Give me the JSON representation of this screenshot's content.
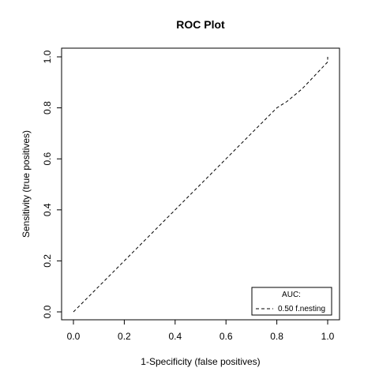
{
  "chart_data": {
    "type": "line",
    "title": "ROC Plot",
    "xlabel": "1-Specificity (false positives)",
    "ylabel": "Sensitivity (true positives)",
    "xlim": [
      0,
      1
    ],
    "ylim": [
      0,
      1
    ],
    "x_ticks": [
      "0.0",
      "0.2",
      "0.4",
      "0.6",
      "0.8",
      "1.0"
    ],
    "y_ticks": [
      "0.0",
      "0.2",
      "0.4",
      "0.6",
      "0.8",
      "1.0"
    ],
    "grid": false,
    "legend": {
      "position": "bottom-right",
      "title": "AUC:",
      "entries": [
        "0.50 f.nesting"
      ]
    },
    "series": [
      {
        "name": "0.50 f.nesting",
        "line_style": "dashed",
        "color": "#000000",
        "x": [
          0.0,
          0.2,
          0.4,
          0.6,
          0.8,
          0.84,
          0.9,
          1.0,
          1.0
        ],
        "y": [
          0.0,
          0.2,
          0.4,
          0.6,
          0.8,
          0.825,
          0.875,
          0.98,
          1.0
        ]
      }
    ]
  }
}
